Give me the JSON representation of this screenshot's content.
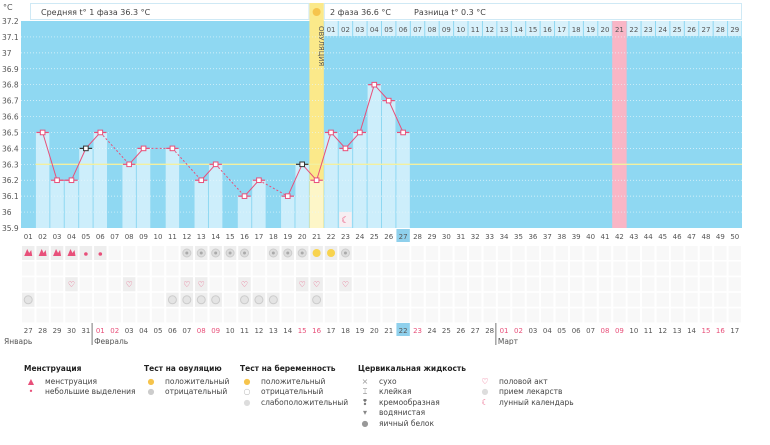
{
  "header": {
    "unit": "°C",
    "phase1_label": "Средняя t° 1 фаза 36.3 °C",
    "phase2_label": "2 фаза 36.6 °C",
    "diff_label": "Разница t° 0.3 °C",
    "ovulation_label": "ОВУЛЯЦИЯ"
  },
  "colors": {
    "background": "#8fd8f2",
    "bar": "#cdeefb",
    "line": "#e8507a",
    "coverline": "#f3f0a0",
    "ovulation": "#fbe98a",
    "highlight_day": "#f9b6c6",
    "today": "#8fd0ec",
    "weekend": "#e8507a"
  },
  "chart_data": {
    "type": "line",
    "ylim": [
      35.9,
      37.2
    ],
    "yticks": [
      "37.2",
      "37.1",
      "37",
      "36.9",
      "36.8",
      "36.7",
      "36.6",
      "36.5",
      "36.4",
      "36.3",
      "36.2",
      "36.1",
      "36",
      "35.9"
    ],
    "grid": true,
    "cycle_days": [
      "01",
      "02",
      "03",
      "04",
      "05",
      "06",
      "07",
      "08",
      "09",
      "10",
      "11",
      "12",
      "13",
      "14",
      "15",
      "16",
      "17",
      "18",
      "19",
      "20",
      "21",
      "22",
      "23",
      "24",
      "25",
      "26",
      "27",
      "28",
      "29",
      "30",
      "31",
      "32",
      "33",
      "34",
      "35",
      "36",
      "37",
      "38",
      "39",
      "40",
      "41",
      "42",
      "43",
      "44",
      "45",
      "46",
      "47",
      "48",
      "49",
      "50"
    ],
    "temperatures": [
      null,
      36.5,
      36.2,
      36.2,
      36.4,
      36.5,
      null,
      36.3,
      36.4,
      null,
      36.4,
      null,
      36.2,
      36.3,
      null,
      36.1,
      36.2,
      null,
      36.1,
      36.3,
      36.2,
      36.5,
      36.4,
      36.5,
      36.8,
      36.7,
      36.5,
      null,
      null,
      null,
      null,
      null,
      null,
      null,
      null,
      null,
      null,
      null,
      null,
      null,
      null,
      null,
      null,
      null,
      null,
      null,
      null,
      null,
      null,
      null
    ],
    "special_markers": [
      5,
      20
    ],
    "coverline": 36.3,
    "ovulation_day": 21,
    "highlight_day": 42,
    "today_day": 27,
    "phase2_days": [
      "01",
      "02",
      "03",
      "04",
      "05",
      "06",
      "07",
      "08",
      "09",
      "10",
      "11",
      "12",
      "13",
      "14",
      "15",
      "16",
      "17",
      "18",
      "19",
      "20",
      "21",
      "22",
      "23",
      "24",
      "25",
      "26",
      "27",
      "28",
      "29"
    ],
    "moon_day": 23
  },
  "calendar": {
    "dates": [
      "27",
      "28",
      "29",
      "30",
      "31",
      "01",
      "02",
      "03",
      "04",
      "05",
      "06",
      "07",
      "08",
      "09",
      "10",
      "11",
      "12",
      "13",
      "14",
      "15",
      "16",
      "17",
      "18",
      "19",
      "20",
      "21",
      "22",
      "23",
      "24",
      "25",
      "26",
      "27",
      "28",
      "01",
      "02",
      "03",
      "04",
      "05",
      "06",
      "07",
      "08",
      "09",
      "10",
      "11",
      "12",
      "13",
      "14",
      "15",
      "16",
      "17"
    ],
    "weekend_indexes": [
      6,
      7,
      13,
      14,
      20,
      21,
      28,
      34,
      35,
      41,
      42,
      48,
      49
    ],
    "months": [
      {
        "label": "Январь",
        "start_day": 1
      },
      {
        "label": "Февраль",
        "start_day": 6
      },
      {
        "label": "Март",
        "start_day": 34
      }
    ]
  },
  "icon_rows": {
    "menstruation_heavy": [
      1,
      2,
      3,
      4
    ],
    "menstruation_light": [
      5,
      6
    ],
    "ovulation_negative": [
      12,
      13,
      14,
      15,
      16,
      18,
      19,
      20,
      23
    ],
    "ovulation_positive": [
      21,
      22
    ],
    "intercourse": [
      4,
      8,
      12,
      13,
      16,
      20,
      21,
      23
    ],
    "medication": [
      1,
      11,
      12,
      13,
      14,
      16,
      17,
      18,
      21
    ]
  },
  "legend": [
    {
      "title": "Менструация",
      "items": [
        {
          "icon": "menstruation-icon",
          "label": "менструация"
        },
        {
          "icon": "spotting-icon",
          "label": "небольшие выделения"
        }
      ]
    },
    {
      "title": "Тест на овуляцию",
      "items": [
        {
          "icon": "ovulation-positive-icon",
          "label": "положительный"
        },
        {
          "icon": "ovulation-negative-icon",
          "label": "отрицательный"
        }
      ]
    },
    {
      "title": "Тест на беременность",
      "items": [
        {
          "icon": "pregnancy-positive-icon",
          "label": "положительный"
        },
        {
          "icon": "pregnancy-negative-icon",
          "label": "отрицательный"
        },
        {
          "icon": "pregnancy-weak-icon",
          "label": "слабоположительный"
        }
      ]
    },
    {
      "title": "Цервикальная жидкость",
      "items": [
        {
          "icon": "dry-icon",
          "label": "сухо"
        },
        {
          "icon": "sticky-icon",
          "label": "клейкая"
        },
        {
          "icon": "creamy-icon",
          "label": "кремообразная"
        },
        {
          "icon": "watery-icon",
          "label": "водянистая"
        },
        {
          "icon": "egg-white-icon",
          "label": "яичный белок"
        }
      ]
    },
    {
      "title": "",
      "items": [
        {
          "icon": "heart-icon",
          "label": "половой акт"
        },
        {
          "icon": "pill-icon",
          "label": "прием лекарств"
        },
        {
          "icon": "moon-icon",
          "label": "лунный календарь"
        }
      ]
    }
  ]
}
